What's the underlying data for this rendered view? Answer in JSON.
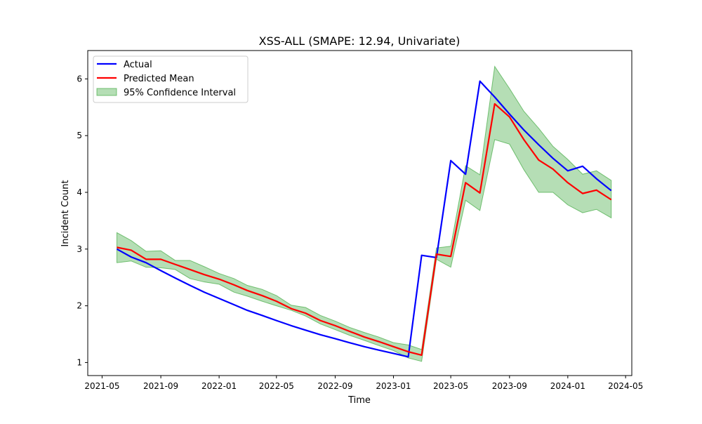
{
  "chart_data": {
    "type": "line",
    "title": "XSS-ALL (SMAPE: 12.94, Univariate)",
    "xlabel": "Time",
    "ylabel": "Incident Count",
    "x_axis_kind": "date",
    "xlim": [
      "2021-04-01",
      "2024-05-14"
    ],
    "ylim": [
      0.77,
      6.5
    ],
    "x_ticks": [
      "2021-05-01",
      "2021-09-01",
      "2022-01-01",
      "2022-05-01",
      "2022-09-01",
      "2023-01-01",
      "2023-05-01",
      "2023-09-01",
      "2024-01-01",
      "2024-05-01"
    ],
    "x_tick_labels": [
      "2021-05",
      "2021-09",
      "2022-01",
      "2022-05",
      "2022-09",
      "2023-01",
      "2023-05",
      "2023-09",
      "2024-01",
      "2024-05"
    ],
    "y_ticks": [
      1,
      2,
      3,
      4,
      5,
      6
    ],
    "y_tick_labels": [
      "1",
      "2",
      "3",
      "4",
      "5",
      "6"
    ],
    "grid": false,
    "legend_position": "upper left",
    "x": [
      "2021-06-01",
      "2021-07-01",
      "2021-08-01",
      "2021-09-01",
      "2021-10-01",
      "2021-11-01",
      "2021-12-01",
      "2022-01-01",
      "2022-02-01",
      "2022-03-01",
      "2022-04-01",
      "2022-05-01",
      "2022-06-01",
      "2022-07-01",
      "2022-08-01",
      "2022-09-01",
      "2022-10-01",
      "2022-11-01",
      "2022-12-01",
      "2023-01-01",
      "2023-02-01",
      "2023-03-01",
      "2023-04-01",
      "2023-05-01",
      "2023-06-01",
      "2023-07-01",
      "2023-08-01",
      "2023-09-01",
      "2023-10-01",
      "2023-11-01",
      "2023-12-01",
      "2024-01-01",
      "2024-02-01",
      "2024-03-01",
      "2024-04-01"
    ],
    "series": [
      {
        "name": "Actual",
        "color": "#0000ff",
        "values": [
          3.0,
          2.86,
          2.76,
          2.62,
          2.49,
          2.36,
          2.24,
          2.13,
          2.02,
          1.92,
          1.83,
          1.74,
          1.65,
          1.57,
          1.49,
          1.42,
          1.35,
          1.28,
          1.22,
          1.16,
          1.1,
          2.89,
          2.85,
          4.56,
          4.32,
          5.96,
          5.68,
          5.38,
          5.1,
          4.84,
          4.6,
          4.38,
          4.46,
          4.24,
          4.03
        ]
      },
      {
        "name": "Predicted Mean",
        "color": "#ff0000",
        "values": [
          3.03,
          2.98,
          2.82,
          2.82,
          2.73,
          2.64,
          2.55,
          2.47,
          2.37,
          2.27,
          2.18,
          2.08,
          1.95,
          1.87,
          1.74,
          1.65,
          1.55,
          1.45,
          1.37,
          1.28,
          1.19,
          1.13,
          2.91,
          2.87,
          4.17,
          3.99,
          5.56,
          5.33,
          4.93,
          4.57,
          4.41,
          4.17,
          3.98,
          4.04,
          3.87
        ]
      }
    ],
    "confidence_interval": {
      "name": "95% Confidence Interval",
      "color": "#2ca02c",
      "opacity": 0.35,
      "lower": [
        2.76,
        2.79,
        2.68,
        2.67,
        2.64,
        2.48,
        2.42,
        2.38,
        2.24,
        2.17,
        2.08,
        2.0,
        1.92,
        1.82,
        1.68,
        1.58,
        1.48,
        1.39,
        1.3,
        1.21,
        1.08,
        1.02,
        2.82,
        2.68,
        3.86,
        3.68,
        4.93,
        4.85,
        4.4,
        4.0,
        4.0,
        3.78,
        3.64,
        3.7,
        3.55
      ],
      "upper": [
        3.29,
        3.15,
        2.96,
        2.97,
        2.8,
        2.8,
        2.69,
        2.57,
        2.48,
        2.36,
        2.29,
        2.18,
        2.01,
        1.97,
        1.83,
        1.73,
        1.62,
        1.53,
        1.45,
        1.35,
        1.31,
        1.23,
        3.02,
        3.05,
        4.47,
        4.31,
        6.22,
        5.83,
        5.43,
        5.13,
        4.81,
        4.58,
        4.32,
        4.38,
        4.21
      ]
    }
  }
}
